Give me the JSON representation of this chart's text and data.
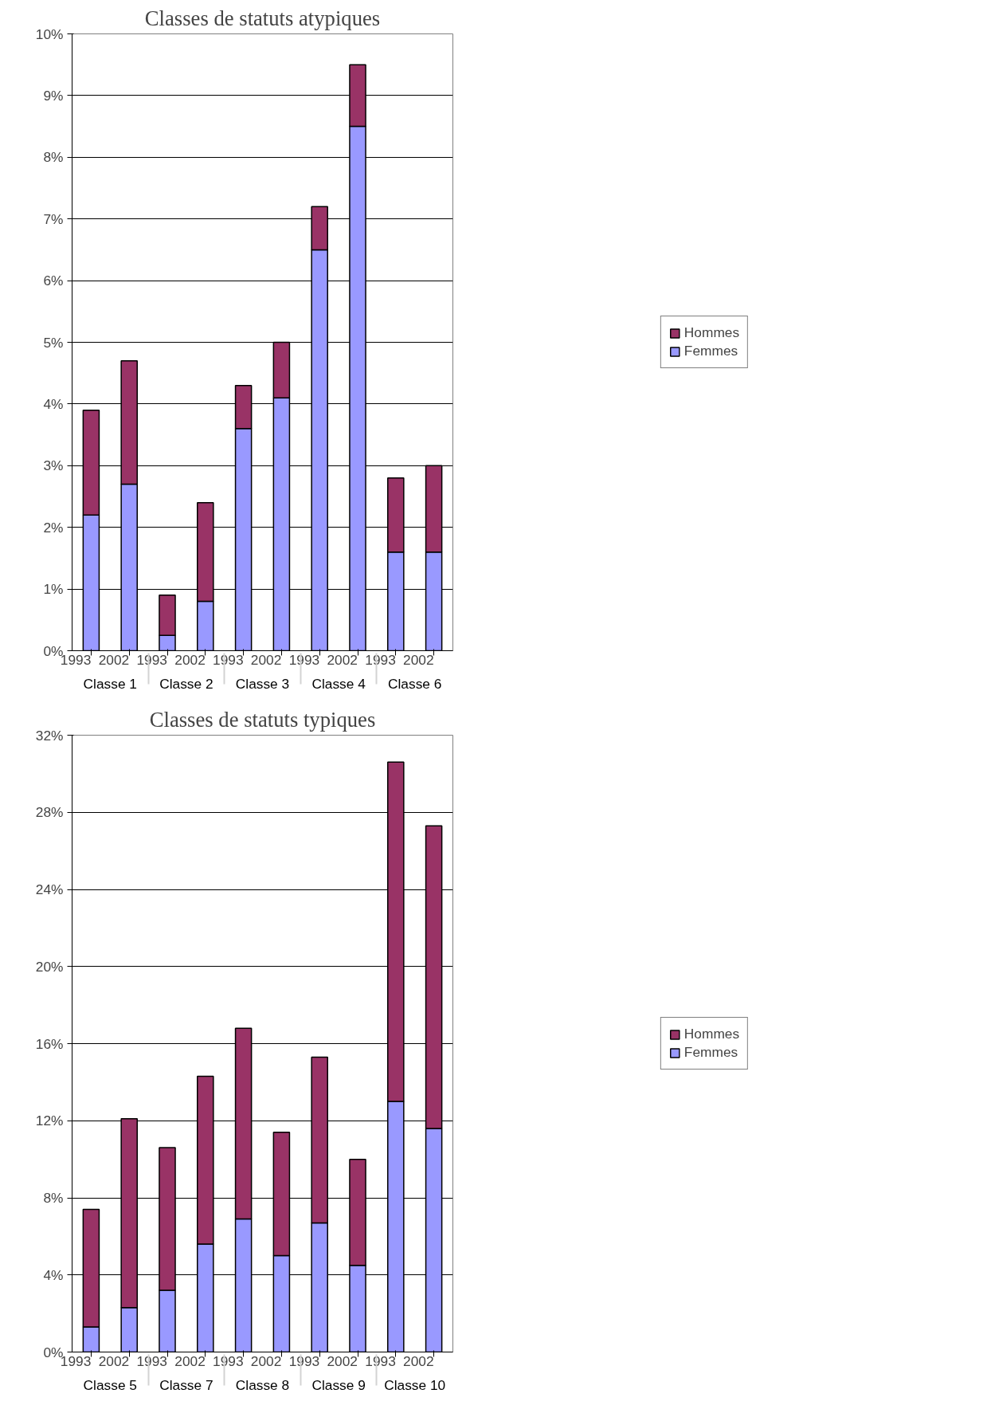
{
  "chart_data": [
    {
      "type": "bar",
      "title": "Classes de statuts atypiques",
      "stacked": true,
      "grid": "y",
      "legend": "right",
      "categories": [
        "1993",
        "2002",
        "1993",
        "2002",
        "1993",
        "2002",
        "1993",
        "2002",
        "1993",
        "2002"
      ],
      "annotations": [
        "Classe 1",
        "Classe 2",
        "Classe 3",
        "Classe 4",
        "Classe 6"
      ],
      "series": [
        {
          "name": "Femmes",
          "color": "#9999ff",
          "values": [
            2.2,
            2.7,
            0.25,
            0.8,
            3.6,
            4.1,
            6.5,
            8.5,
            1.6,
            1.6
          ]
        },
        {
          "name": "Hommes",
          "color": "#993366",
          "values": [
            1.7,
            2.0,
            0.65,
            1.6,
            0.7,
            0.9,
            0.7,
            1.0,
            1.2,
            1.4
          ]
        }
      ],
      "ylim": [
        0,
        10
      ],
      "yticks": [
        {
          "value": 0,
          "label": "0%"
        },
        {
          "value": 1,
          "label": "1%"
        },
        {
          "value": 2,
          "label": "2%"
        },
        {
          "value": 3,
          "label": "3%"
        },
        {
          "value": 4,
          "label": "4%"
        },
        {
          "value": 5,
          "label": "5%"
        },
        {
          "value": 6,
          "label": "6%"
        },
        {
          "value": 7,
          "label": "7%"
        },
        {
          "value": 8,
          "label": "8%"
        },
        {
          "value": 9,
          "label": "9%"
        },
        {
          "value": 10,
          "label": "10%"
        }
      ]
    },
    {
      "type": "bar",
      "title": "Classes de statuts typiques",
      "stacked": true,
      "grid": "y",
      "legend": "right",
      "categories": [
        "1993",
        "2002",
        "1993",
        "2002",
        "1993",
        "2002",
        "1993",
        "2002",
        "1993",
        "2002"
      ],
      "annotations": [
        "Classe 5",
        "Classe 7",
        "Classe 8",
        "Classe 9",
        "Classe 10"
      ],
      "series": [
        {
          "name": "Femmes",
          "color": "#9999ff",
          "values": [
            1.3,
            2.3,
            3.2,
            5.6,
            6.9,
            5.0,
            6.7,
            4.5,
            13.0,
            11.6
          ]
        },
        {
          "name": "Hommes",
          "color": "#993366",
          "values": [
            6.1,
            9.8,
            7.4,
            8.7,
            9.9,
            6.4,
            8.6,
            5.5,
            17.6,
            15.7
          ]
        }
      ],
      "ylim": [
        0,
        32
      ],
      "yticks": [
        {
          "value": 0,
          "label": "0%"
        },
        {
          "value": 4,
          "label": "4%"
        },
        {
          "value": 8,
          "label": "8%"
        },
        {
          "value": 12,
          "label": "12%"
        },
        {
          "value": 16,
          "label": "16%"
        },
        {
          "value": 20,
          "label": "20%"
        },
        {
          "value": 24,
          "label": "24%"
        },
        {
          "value": 28,
          "label": "28%"
        },
        {
          "value": 32,
          "label": "32%"
        }
      ]
    }
  ]
}
